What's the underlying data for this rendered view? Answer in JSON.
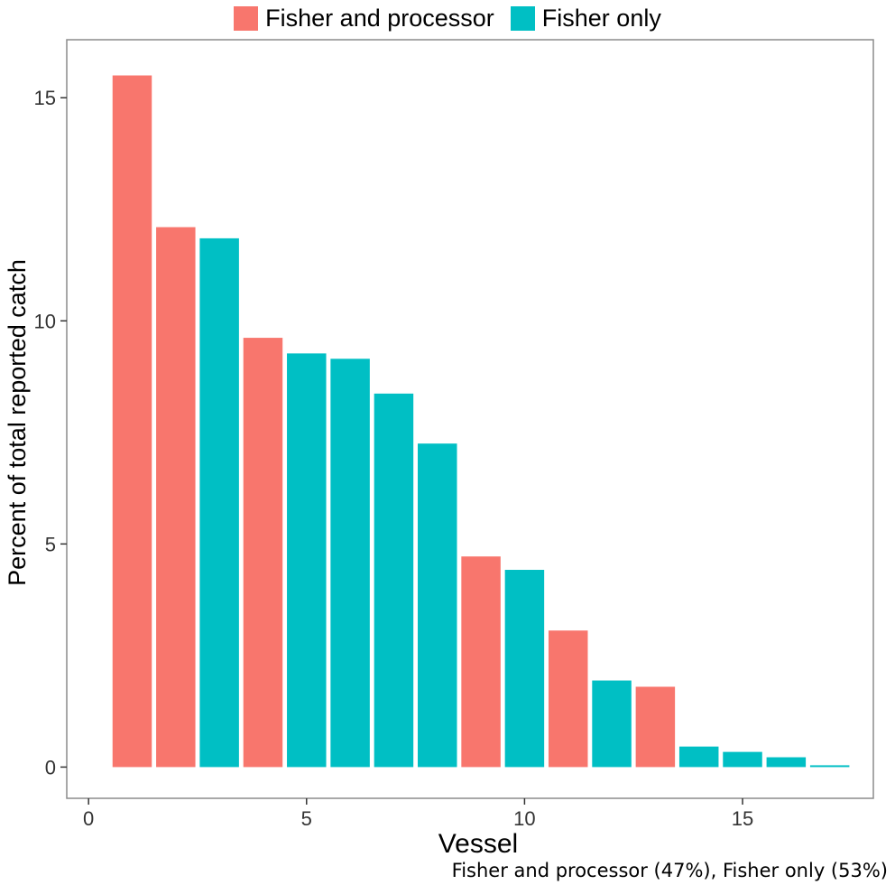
{
  "chart_data": {
    "type": "bar",
    "title": "",
    "xlabel": "Vessel",
    "ylabel": "Percent of total reported catch",
    "xlim": [
      -0.5,
      18.0
    ],
    "ylim": [
      -0.7,
      16.3
    ],
    "x_ticks": [
      0,
      5,
      10,
      15
    ],
    "y_ticks": [
      0,
      5,
      10,
      15
    ],
    "grid": false,
    "legend_position": "top",
    "series": [
      {
        "name": "Fisher and processor",
        "color": "#F8766D"
      },
      {
        "name": "Fisher only",
        "color": "#00BFC4"
      }
    ],
    "bars": [
      {
        "vessel": 1,
        "value": 15.5,
        "series": "Fisher and processor"
      },
      {
        "vessel": 2,
        "value": 12.1,
        "series": "Fisher and processor"
      },
      {
        "vessel": 3,
        "value": 11.85,
        "series": "Fisher only"
      },
      {
        "vessel": 4,
        "value": 9.62,
        "series": "Fisher and processor"
      },
      {
        "vessel": 5,
        "value": 9.27,
        "series": "Fisher only"
      },
      {
        "vessel": 6,
        "value": 9.15,
        "series": "Fisher only"
      },
      {
        "vessel": 7,
        "value": 8.37,
        "series": "Fisher only"
      },
      {
        "vessel": 8,
        "value": 7.25,
        "series": "Fisher only"
      },
      {
        "vessel": 9,
        "value": 4.72,
        "series": "Fisher and processor"
      },
      {
        "vessel": 10,
        "value": 4.42,
        "series": "Fisher only"
      },
      {
        "vessel": 11,
        "value": 3.06,
        "series": "Fisher and processor"
      },
      {
        "vessel": 12,
        "value": 1.94,
        "series": "Fisher only"
      },
      {
        "vessel": 13,
        "value": 1.8,
        "series": "Fisher and processor"
      },
      {
        "vessel": 14,
        "value": 0.46,
        "series": "Fisher only"
      },
      {
        "vessel": 15,
        "value": 0.34,
        "series": "Fisher only"
      },
      {
        "vessel": 16,
        "value": 0.22,
        "series": "Fisher only"
      },
      {
        "vessel": 17,
        "value": 0.04,
        "series": "Fisher only"
      }
    ],
    "caption": "Fisher and processor (47%), Fisher only (53%)"
  }
}
